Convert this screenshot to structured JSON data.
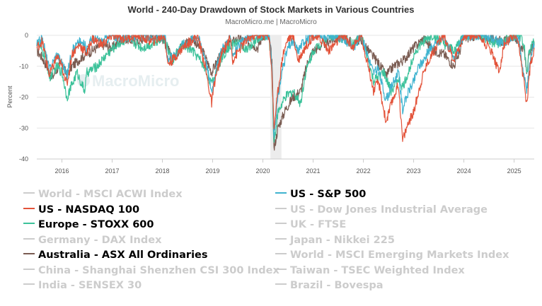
{
  "chart_data": {
    "type": "line",
    "title": "World - 240-Day Drawdown of Stock Markets in Various Countries",
    "subtitle": "MacroMicro.me | MacroMicro",
    "watermark": "MacroMicro",
    "ylabel": "Percent",
    "ylim": [
      -40,
      0
    ],
    "yticks": [
      "0",
      "-10",
      "-20",
      "-30",
      "-40"
    ],
    "xlim": [
      2015.5,
      2025.4
    ],
    "xticks": [
      "2016",
      "2017",
      "2018",
      "2019",
      "2020",
      "2021",
      "2022",
      "2023",
      "2024",
      "2025"
    ],
    "shaded_period": [
      2020.15,
      2020.37
    ],
    "grid": "horizontal",
    "legend_placement": "bottom",
    "series": [
      {
        "name": "World - MSCI ACWI Index",
        "visible": false,
        "color": "#cccccc"
      },
      {
        "name": "US - S&P 500",
        "visible": true,
        "color": "#3fb3cf",
        "x": [
          2015.5,
          2015.6,
          2015.65,
          2015.75,
          2015.9,
          2016.0,
          2016.1,
          2016.2,
          2016.35,
          2016.5,
          2016.6,
          2016.8,
          2017.0,
          2017.2,
          2017.5,
          2017.8,
          2018.05,
          2018.1,
          2018.2,
          2018.4,
          2018.7,
          2018.85,
          2018.98,
          2019.05,
          2019.2,
          2019.35,
          2019.4,
          2019.6,
          2019.8,
          2020.0,
          2020.12,
          2020.18,
          2020.22,
          2020.3,
          2020.4,
          2020.5,
          2020.6,
          2020.7,
          2020.8,
          2021.0,
          2021.3,
          2021.6,
          2021.8,
          2021.95,
          2022.1,
          2022.2,
          2022.3,
          2022.45,
          2022.6,
          2022.7,
          2022.78,
          2022.9,
          2023.0,
          2023.1,
          2023.2,
          2023.3,
          2023.5,
          2023.6,
          2023.8,
          2024.0,
          2024.3,
          2024.6,
          2024.8,
          2025.0,
          2025.1,
          2025.15,
          2025.25,
          2025.32,
          2025.4
        ],
        "values": [
          -3,
          -1,
          -4,
          -11,
          -6,
          -9,
          -13,
          -5,
          -2,
          -4,
          -1,
          -2,
          0,
          -1,
          0,
          -1,
          0,
          -8,
          -7,
          -3,
          0,
          -7,
          -18,
          -12,
          -4,
          -1,
          -6,
          -2,
          0,
          0,
          0,
          -10,
          -33,
          -20,
          -10,
          -4,
          -2,
          -5,
          -2,
          0,
          0,
          -1,
          -4,
          0,
          -7,
          -12,
          -11,
          -21,
          -15,
          -12,
          -24,
          -18,
          -15,
          -10,
          -8,
          -5,
          -2,
          0,
          -8,
          0,
          0,
          -1,
          -3,
          0,
          -2,
          -8,
          -18,
          -8,
          -3
        ]
      },
      {
        "name": "US - NASDAQ 100",
        "visible": true,
        "color": "#e3533a",
        "x": [
          2015.5,
          2015.6,
          2015.65,
          2015.75,
          2015.9,
          2016.0,
          2016.1,
          2016.2,
          2016.35,
          2016.5,
          2016.6,
          2016.8,
          2017.0,
          2017.2,
          2017.5,
          2017.8,
          2018.05,
          2018.1,
          2018.2,
          2018.4,
          2018.7,
          2018.85,
          2018.98,
          2019.05,
          2019.2,
          2019.35,
          2019.4,
          2019.6,
          2019.8,
          2020.0,
          2020.12,
          2020.18,
          2020.22,
          2020.3,
          2020.4,
          2020.5,
          2020.6,
          2020.7,
          2020.8,
          2021.0,
          2021.2,
          2021.3,
          2021.6,
          2021.8,
          2021.95,
          2022.1,
          2022.2,
          2022.3,
          2022.45,
          2022.6,
          2022.7,
          2022.78,
          2022.9,
          2023.0,
          2023.1,
          2023.2,
          2023.3,
          2023.5,
          2023.6,
          2023.8,
          2024.0,
          2024.3,
          2024.55,
          2024.7,
          2024.8,
          2025.0,
          2025.1,
          2025.15,
          2025.25,
          2025.32,
          2025.4
        ],
        "values": [
          -4,
          -2,
          -5,
          -13,
          -7,
          -10,
          -16,
          -6,
          -3,
          -6,
          -1,
          -3,
          0,
          -1,
          0,
          -2,
          0,
          -9,
          -8,
          -4,
          0,
          -10,
          -22,
          -14,
          -5,
          -1,
          -8,
          -3,
          0,
          0,
          0,
          -12,
          -30,
          -18,
          -6,
          -1,
          0,
          -8,
          -5,
          0,
          -2,
          -5,
          0,
          -4,
          0,
          -10,
          -18,
          -15,
          -28,
          -20,
          -16,
          -34,
          -28,
          -25,
          -18,
          -12,
          -8,
          -2,
          0,
          -8,
          0,
          0,
          -5,
          -12,
          -3,
          0,
          -4,
          -10,
          -22,
          -10,
          -4
        ]
      },
      {
        "name": "US - Dow Jones Industrial Average",
        "visible": false,
        "color": "#cccccc"
      },
      {
        "name": "Europe - STOXX 600",
        "visible": true,
        "color": "#3cc29a",
        "x": [
          2015.5,
          2015.6,
          2015.7,
          2015.75,
          2015.9,
          2016.0,
          2016.1,
          2016.2,
          2016.3,
          2016.45,
          2016.5,
          2016.7,
          2016.9,
          2017.1,
          2017.3,
          2017.6,
          2017.9,
          2018.0,
          2018.2,
          2018.4,
          2018.6,
          2018.8,
          2018.98,
          2019.1,
          2019.3,
          2019.5,
          2019.7,
          2019.9,
          2020.0,
          2020.12,
          2020.18,
          2020.22,
          2020.3,
          2020.45,
          2020.6,
          2020.75,
          2020.85,
          2021.0,
          2021.3,
          2021.6,
          2021.8,
          2021.95,
          2022.1,
          2022.2,
          2022.4,
          2022.55,
          2022.7,
          2022.78,
          2022.9,
          2023.0,
          2023.2,
          2023.4,
          2023.6,
          2023.8,
          2024.0,
          2024.3,
          2024.6,
          2024.8,
          2025.0,
          2025.1,
          2025.2,
          2025.25,
          2025.3,
          2025.4
        ],
        "values": [
          -2,
          -5,
          -8,
          -14,
          -10,
          -12,
          -20,
          -16,
          -12,
          -18,
          -12,
          -10,
          -6,
          -3,
          -1,
          -4,
          -2,
          0,
          -8,
          -3,
          -5,
          -9,
          -16,
          -10,
          -4,
          -2,
          -5,
          -1,
          0,
          0,
          -12,
          -35,
          -25,
          -20,
          -18,
          -22,
          -12,
          -5,
          0,
          -1,
          -3,
          0,
          -8,
          -15,
          -12,
          -18,
          -14,
          -17,
          -12,
          -6,
          -2,
          0,
          -3,
          -5,
          0,
          0,
          -3,
          -2,
          0,
          0,
          -3,
          -13,
          -5,
          -2
        ]
      },
      {
        "name": "UK - FTSE",
        "visible": false,
        "color": "#cccccc"
      },
      {
        "name": "Germany - DAX Index",
        "visible": false,
        "color": "#cccccc"
      },
      {
        "name": "Japan - Nikkei 225",
        "visible": false,
        "color": "#cccccc"
      },
      {
        "name": "Australia - ASX All Ordinaries",
        "visible": true,
        "color": "#7a5c52",
        "x": [
          2015.5,
          2015.6,
          2015.7,
          2015.8,
          2015.9,
          2016.0,
          2016.1,
          2016.2,
          2016.4,
          2016.6,
          2016.8,
          2017.0,
          2017.2,
          2017.5,
          2017.8,
          2018.0,
          2018.1,
          2018.2,
          2018.4,
          2018.6,
          2018.8,
          2018.98,
          2019.1,
          2019.3,
          2019.5,
          2019.7,
          2019.9,
          2020.0,
          2020.12,
          2020.18,
          2020.22,
          2020.3,
          2020.45,
          2020.6,
          2020.75,
          2020.9,
          2021.0,
          2021.3,
          2021.6,
          2021.8,
          2021.95,
          2022.1,
          2022.3,
          2022.45,
          2022.6,
          2022.8,
          2023.0,
          2023.2,
          2023.4,
          2023.6,
          2023.8,
          2023.9,
          2024.0,
          2024.3,
          2024.6,
          2024.8,
          2025.0,
          2025.1,
          2025.2,
          2025.25,
          2025.3,
          2025.4
        ],
        "values": [
          -5,
          -7,
          -10,
          -14,
          -11,
          -9,
          -13,
          -10,
          -7,
          -5,
          -3,
          -4,
          -1,
          -2,
          0,
          -1,
          -4,
          -8,
          -3,
          -1,
          -5,
          -12,
          -8,
          -3,
          -1,
          -2,
          -4,
          0,
          0,
          -8,
          -37,
          -30,
          -24,
          -20,
          -18,
          -8,
          -5,
          -2,
          0,
          -3,
          -1,
          -5,
          -9,
          -13,
          -10,
          -8,
          -4,
          -1,
          -5,
          -6,
          -10,
          -6,
          -1,
          0,
          -1,
          -2,
          0,
          -3,
          -5,
          -12,
          -6,
          -3
        ]
      },
      {
        "name": "World - MSCI Emerging Markets Index",
        "visible": false,
        "color": "#cccccc"
      },
      {
        "name": "China - Shanghai Shenzhen CSI 300 Index",
        "visible": false,
        "color": "#cccccc"
      },
      {
        "name": "Taiwan - TSEC Weighted Index",
        "visible": false,
        "color": "#cccccc"
      },
      {
        "name": "India - SENSEX 30",
        "visible": false,
        "color": "#cccccc"
      },
      {
        "name": "Brazil - Bovespa",
        "visible": false,
        "color": "#cccccc"
      }
    ]
  }
}
